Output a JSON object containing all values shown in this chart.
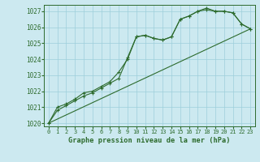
{
  "xlabel": "Graphe pression niveau de la mer (hPa)",
  "ylim": [
    1019.8,
    1027.4
  ],
  "xlim": [
    -0.5,
    23.5
  ],
  "yticks": [
    1020,
    1021,
    1022,
    1023,
    1024,
    1025,
    1026,
    1027
  ],
  "xticks": [
    0,
    1,
    2,
    3,
    4,
    5,
    6,
    7,
    8,
    9,
    10,
    11,
    12,
    13,
    14,
    15,
    16,
    17,
    18,
    19,
    20,
    21,
    22,
    23
  ],
  "bg_color": "#cce9f0",
  "grid_color": "#9ecfdb",
  "line_color": "#2d6b2d",
  "line1_x": [
    0,
    1,
    2,
    3,
    4,
    5,
    6,
    7,
    8,
    9,
    10,
    11,
    12,
    13,
    14,
    15,
    16,
    17,
    18,
    19,
    20,
    21,
    22,
    23
  ],
  "line1_y": [
    1020.0,
    1020.8,
    1021.1,
    1021.4,
    1021.7,
    1021.9,
    1022.2,
    1022.5,
    1022.8,
    1024.1,
    1025.4,
    1025.5,
    1025.3,
    1025.2,
    1025.4,
    1026.5,
    1026.7,
    1027.0,
    1027.1,
    1027.0,
    1027.0,
    1026.9,
    1026.2,
    1025.9
  ],
  "line2_x": [
    0,
    1,
    2,
    3,
    4,
    5,
    6,
    7,
    8,
    9,
    10,
    11,
    12,
    13,
    14,
    15,
    16,
    17,
    18,
    19,
    20,
    21,
    22,
    23
  ],
  "line2_y": [
    1020.0,
    1021.0,
    1021.2,
    1021.5,
    1021.9,
    1022.0,
    1022.3,
    1022.6,
    1023.2,
    1024.0,
    1025.4,
    1025.5,
    1025.3,
    1025.2,
    1025.4,
    1026.5,
    1026.7,
    1027.0,
    1027.2,
    1027.0,
    1027.0,
    1026.9,
    1026.2,
    1025.9
  ],
  "line3_x": [
    0,
    23
  ],
  "line3_y": [
    1020.0,
    1025.9
  ]
}
